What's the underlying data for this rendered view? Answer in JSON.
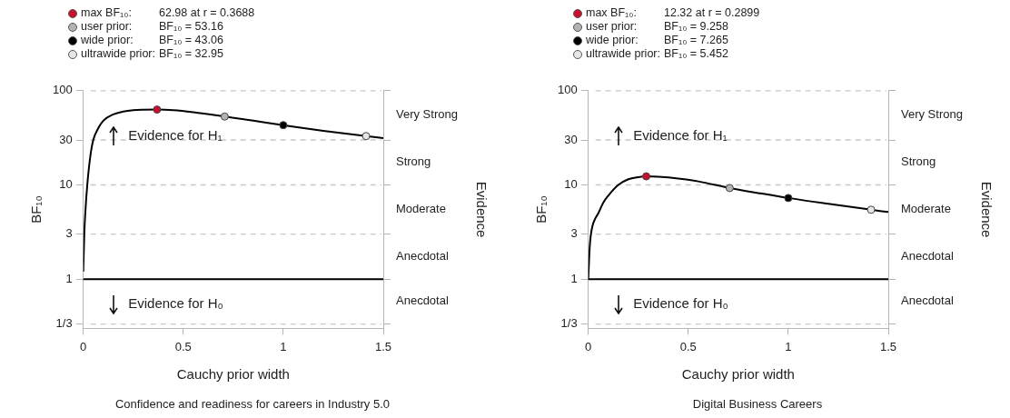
{
  "chart_data": [
    {
      "type": "line",
      "title": "Confidence and readiness for careers in Industry 5.0",
      "xlabel": "Cauchy prior width",
      "ylabel": "BF₁₀",
      "y2label": "Evidence",
      "log": "y",
      "grid": "y",
      "legend": "top left",
      "xlim": [
        0,
        1.5
      ],
      "xticks": [
        0,
        0.5,
        1,
        1.5
      ],
      "ylim": [
        0.3333,
        100
      ],
      "yticks": [
        {
          "value": 0.3333,
          "label": "1/3"
        },
        1,
        3,
        10,
        30,
        100
      ],
      "ref_lines": [
        {
          "axis": "y",
          "value": 1,
          "color": "#000000"
        }
      ],
      "annotations": [
        "62.98 at r = 0.3688",
        "BF₁₀ = 53.16",
        "BF₁₀ = 43.06",
        "BF₁₀ = 32.95",
        "Evidence for H₁",
        "Evidence for H₀",
        "Anecdotal",
        "Anecdotal",
        "Moderate",
        "Strong",
        "Very Strong"
      ],
      "series": [
        {
          "color": "#000000",
          "marker": "none",
          "x": [
            0,
            0.005,
            0.01,
            0.02,
            0.035,
            0.05,
            0.075,
            0.1,
            0.15,
            0.2,
            0.25,
            0.3,
            0.3688,
            0.45,
            0.55,
            0.707,
            0.85,
            1,
            1.2,
            1.414,
            1.5
          ],
          "values": [
            1.2,
            3,
            5,
            10,
            20,
            30,
            40,
            48,
            56,
            60,
            62,
            62.7,
            62.98,
            62,
            59,
            53.16,
            48,
            43.06,
            37.5,
            32.95,
            31.3
          ]
        },
        {
          "type": "scatter",
          "marker": "circle",
          "name": "max BF₁₀:",
          "color": "#c8102e",
          "x": [
            0.3688
          ],
          "values": [
            62.98
          ]
        },
        {
          "type": "scatter",
          "marker": "circle",
          "name": "user prior:",
          "color": "#b3b3b3",
          "x": [
            0.707
          ],
          "values": [
            53.16
          ]
        },
        {
          "type": "scatter",
          "marker": "circle",
          "name": "wide prior:",
          "color": "#000000",
          "x": [
            1
          ],
          "values": [
            43.06
          ]
        },
        {
          "type": "scatter",
          "marker": "circle",
          "name": "ultrawide prior:",
          "color": "#e6e6e6",
          "x": [
            1.414
          ],
          "values": [
            32.95
          ]
        }
      ]
    },
    {
      "type": "line",
      "title": "Digital Business Careers",
      "xlabel": "Cauchy prior width",
      "ylabel": "BF₁₀",
      "y2label": "Evidence",
      "log": "y",
      "grid": "y",
      "legend": "top left",
      "xlim": [
        0,
        1.5
      ],
      "xticks": [
        0,
        0.5,
        1,
        1.5
      ],
      "ylim": [
        0.3333,
        100
      ],
      "yticks": [
        {
          "value": 0.3333,
          "label": "1/3"
        },
        1,
        3,
        10,
        30,
        100
      ],
      "ref_lines": [
        {
          "axis": "y",
          "value": 1,
          "color": "#000000"
        }
      ],
      "annotations": [
        "12.32 at r = 0.2899",
        "BF₁₀ = 9.258",
        "BF₁₀ = 7.265",
        "BF₁₀ = 5.452",
        "Evidence for H₁",
        "Evidence for H₀",
        "Anecdotal",
        "Anecdotal",
        "Moderate",
        "Strong",
        "Very Strong"
      ],
      "series": [
        {
          "color": "#000000",
          "marker": "none",
          "x": [
            0,
            0.005,
            0.01,
            0.02,
            0.035,
            0.05,
            0.075,
            0.1,
            0.15,
            0.2,
            0.25,
            0.2899,
            0.35,
            0.45,
            0.55,
            0.707,
            0.85,
            1,
            1.2,
            1.414,
            1.5
          ],
          "values": [
            1,
            1.8,
            2.6,
            3.6,
            4.4,
            5,
            6.5,
            7.7,
            10,
            11.5,
            12.1,
            12.32,
            12.2,
            11.7,
            10.9,
            9.258,
            8.2,
            7.265,
            6.3,
            5.452,
            5.15
          ]
        },
        {
          "type": "scatter",
          "marker": "circle",
          "name": "max BF₁₀:",
          "color": "#c8102e",
          "x": [
            0.2899
          ],
          "values": [
            12.32
          ]
        },
        {
          "type": "scatter",
          "marker": "circle",
          "name": "user prior:",
          "color": "#b3b3b3",
          "x": [
            0.707
          ],
          "values": [
            9.258
          ]
        },
        {
          "type": "scatter",
          "marker": "circle",
          "name": "wide prior:",
          "color": "#000000",
          "x": [
            1
          ],
          "values": [
            7.265
          ]
        },
        {
          "type": "scatter",
          "marker": "circle",
          "name": "ultrawide prior:",
          "color": "#e6e6e6",
          "x": [
            1.414
          ],
          "values": [
            5.452
          ]
        }
      ]
    }
  ]
}
